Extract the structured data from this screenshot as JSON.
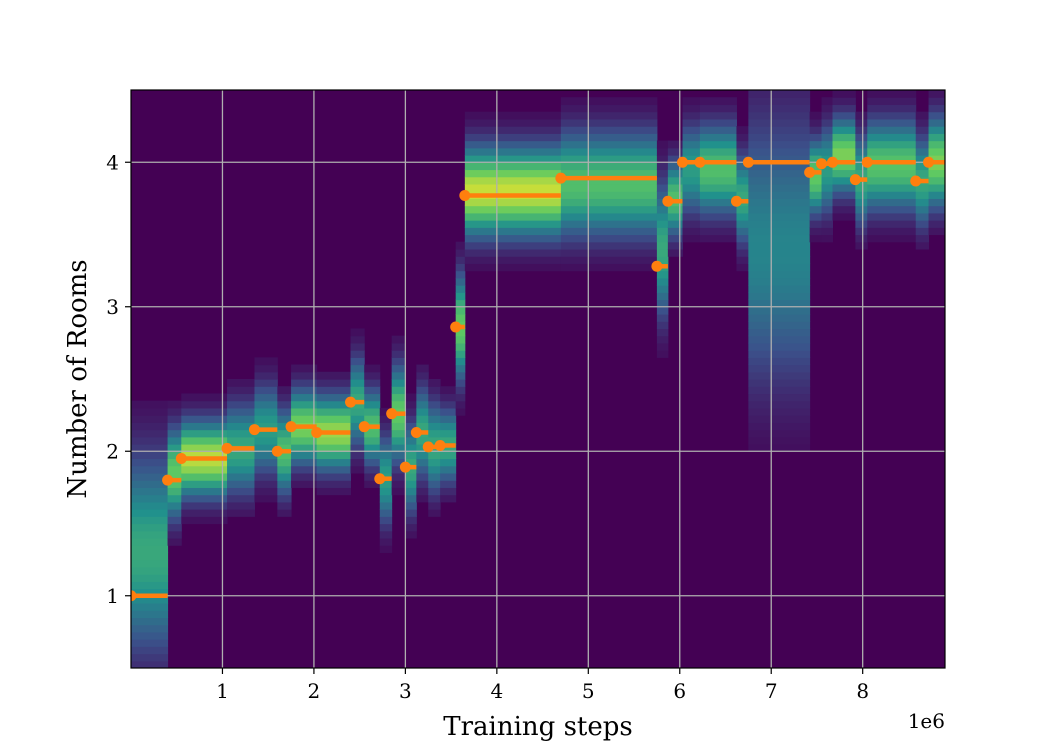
{
  "chart_data": {
    "type": "heatmap",
    "title": "",
    "xlabel": "Training steps",
    "ylabel": "Number of Rooms",
    "x_offset_label": "1e6",
    "xlim": [
      0.0,
      8.9
    ],
    "ylim": [
      0.5,
      4.5
    ],
    "xticks": [
      1,
      2,
      3,
      4,
      5,
      6,
      7,
      8
    ],
    "xtick_labels": [
      "1",
      "2",
      "3",
      "4",
      "5",
      "6",
      "7",
      "8"
    ],
    "yticks": [
      1,
      2,
      3,
      4
    ],
    "ytick_labels": [
      "1",
      "2",
      "3",
      "4"
    ],
    "grid": true,
    "colormap": "viridis",
    "background_color": "#440154",
    "series": [
      {
        "values": [
          {
            "x_start": 0.0,
            "x_end": 0.4,
            "y": 1.0
          },
          {
            "x_start": 0.4,
            "x_end": 0.55,
            "y": 1.8
          },
          {
            "x_start": 0.55,
            "x_end": 1.05,
            "y": 1.95
          },
          {
            "x_start": 1.05,
            "x_end": 1.35,
            "y": 2.02
          },
          {
            "x_start": 1.35,
            "x_end": 1.6,
            "y": 2.15
          },
          {
            "x_start": 1.6,
            "x_end": 1.75,
            "y": 2.0
          },
          {
            "x_start": 1.75,
            "x_end": 2.03,
            "y": 2.17
          },
          {
            "x_start": 2.03,
            "x_end": 2.4,
            "y": 2.13
          },
          {
            "x_start": 2.4,
            "x_end": 2.55,
            "y": 2.34
          },
          {
            "x_start": 2.55,
            "x_end": 2.72,
            "y": 2.17
          },
          {
            "x_start": 2.72,
            "x_end": 2.85,
            "y": 1.81
          },
          {
            "x_start": 2.85,
            "x_end": 3.0,
            "y": 2.26
          },
          {
            "x_start": 3.0,
            "x_end": 3.12,
            "y": 1.89
          },
          {
            "x_start": 3.12,
            "x_end": 3.25,
            "y": 2.13
          },
          {
            "x_start": 3.25,
            "x_end": 3.38,
            "y": 2.03
          },
          {
            "x_start": 3.38,
            "x_end": 3.55,
            "y": 2.04
          },
          {
            "x_start": 3.55,
            "x_end": 3.65,
            "y": 2.86
          },
          {
            "x_start": 3.65,
            "x_end": 4.7,
            "y": 3.77
          },
          {
            "x_start": 4.7,
            "x_end": 5.75,
            "y": 3.89
          },
          {
            "x_start": 5.75,
            "x_end": 5.87,
            "y": 3.28
          },
          {
            "x_start": 5.87,
            "x_end": 6.03,
            "y": 3.73
          },
          {
            "x_start": 6.03,
            "x_end": 6.22,
            "y": 4.0
          },
          {
            "x_start": 6.22,
            "x_end": 6.62,
            "y": 4.0
          },
          {
            "x_start": 6.62,
            "x_end": 6.75,
            "y": 3.73
          },
          {
            "x_start": 6.75,
            "x_end": 7.42,
            "y": 4.0
          },
          {
            "x_start": 7.42,
            "x_end": 7.55,
            "y": 3.93
          },
          {
            "x_start": 7.55,
            "x_end": 7.67,
            "y": 3.99
          },
          {
            "x_start": 7.67,
            "x_end": 7.92,
            "y": 4.0
          },
          {
            "x_start": 7.92,
            "x_end": 8.05,
            "y": 3.88
          },
          {
            "x_start": 8.05,
            "x_end": 8.58,
            "y": 4.0
          },
          {
            "x_start": 8.58,
            "x_end": 8.72,
            "y": 3.87
          },
          {
            "x_start": 8.72,
            "x_end": 8.9,
            "y": 4.0
          }
        ],
        "color": "#ff7f0e"
      }
    ],
    "density": [
      {
        "x_start": 0.0,
        "x_end": 0.4,
        "center": 1.3,
        "spread": 0.65,
        "peak": 0.6
      },
      {
        "x_start": 0.4,
        "x_end": 0.55,
        "center": 1.85,
        "spread": 0.3,
        "peak": 0.75
      },
      {
        "x_start": 0.55,
        "x_end": 1.05,
        "center": 1.95,
        "spread": 0.25,
        "peak": 0.9
      },
      {
        "x_start": 1.05,
        "x_end": 1.35,
        "center": 2.02,
        "spread": 0.3,
        "peak": 0.6
      },
      {
        "x_start": 1.35,
        "x_end": 1.6,
        "center": 2.15,
        "spread": 0.3,
        "peak": 0.55
      },
      {
        "x_start": 1.6,
        "x_end": 1.75,
        "center": 2.0,
        "spread": 0.28,
        "peak": 0.7
      },
      {
        "x_start": 1.75,
        "x_end": 2.03,
        "center": 2.17,
        "spread": 0.25,
        "peak": 0.8
      },
      {
        "x_start": 2.03,
        "x_end": 2.4,
        "center": 2.13,
        "spread": 0.25,
        "peak": 0.85
      },
      {
        "x_start": 2.4,
        "x_end": 2.55,
        "center": 2.34,
        "spread": 0.3,
        "peak": 0.6
      },
      {
        "x_start": 2.55,
        "x_end": 2.72,
        "center": 2.17,
        "spread": 0.25,
        "peak": 0.7
      },
      {
        "x_start": 2.72,
        "x_end": 2.85,
        "center": 1.81,
        "spread": 0.3,
        "peak": 0.55
      },
      {
        "x_start": 2.85,
        "x_end": 3.0,
        "center": 2.26,
        "spread": 0.32,
        "peak": 0.75
      },
      {
        "x_start": 3.0,
        "x_end": 3.12,
        "center": 1.89,
        "spread": 0.3,
        "peak": 0.6
      },
      {
        "x_start": 3.12,
        "x_end": 3.25,
        "center": 2.13,
        "spread": 0.3,
        "peak": 0.6
      },
      {
        "x_start": 3.25,
        "x_end": 3.38,
        "center": 2.03,
        "spread": 0.3,
        "peak": 0.6
      },
      {
        "x_start": 3.38,
        "x_end": 3.55,
        "center": 2.04,
        "spread": 0.25,
        "peak": 0.6
      },
      {
        "x_start": 3.55,
        "x_end": 3.65,
        "center": 2.86,
        "spread": 0.35,
        "peak": 0.75
      },
      {
        "x_start": 3.65,
        "x_end": 4.7,
        "center": 3.8,
        "spread": 0.3,
        "peak": 0.92
      },
      {
        "x_start": 4.7,
        "x_end": 5.75,
        "center": 3.85,
        "spread": 0.35,
        "peak": 0.7
      },
      {
        "x_start": 5.75,
        "x_end": 5.87,
        "center": 3.4,
        "spread": 0.45,
        "peak": 0.6
      },
      {
        "x_start": 5.87,
        "x_end": 6.03,
        "center": 3.75,
        "spread": 0.25,
        "peak": 0.7
      },
      {
        "x_start": 6.03,
        "x_end": 6.22,
        "center": 3.95,
        "spread": 0.3,
        "peak": 0.55
      },
      {
        "x_start": 6.22,
        "x_end": 6.62,
        "center": 3.95,
        "spread": 0.3,
        "peak": 0.7
      },
      {
        "x_start": 6.62,
        "x_end": 6.75,
        "center": 3.75,
        "spread": 0.3,
        "peak": 0.6
      },
      {
        "x_start": 6.75,
        "x_end": 7.42,
        "center": 3.4,
        "spread": 0.9,
        "peak": 0.45
      },
      {
        "x_start": 7.42,
        "x_end": 7.55,
        "center": 3.9,
        "spread": 0.25,
        "peak": 0.75
      },
      {
        "x_start": 7.55,
        "x_end": 7.67,
        "center": 3.95,
        "spread": 0.3,
        "peak": 0.55
      },
      {
        "x_start": 7.67,
        "x_end": 7.92,
        "center": 4.05,
        "spread": 0.25,
        "peak": 0.8
      },
      {
        "x_start": 7.92,
        "x_end": 8.05,
        "center": 3.88,
        "spread": 0.3,
        "peak": 0.6
      },
      {
        "x_start": 8.05,
        "x_end": 8.58,
        "center": 3.98,
        "spread": 0.3,
        "peak": 0.72
      },
      {
        "x_start": 8.58,
        "x_end": 8.72,
        "center": 3.87,
        "spread": 0.3,
        "peak": 0.6
      },
      {
        "x_start": 8.72,
        "x_end": 8.9,
        "center": 4.0,
        "spread": 0.3,
        "peak": 0.8
      }
    ]
  }
}
